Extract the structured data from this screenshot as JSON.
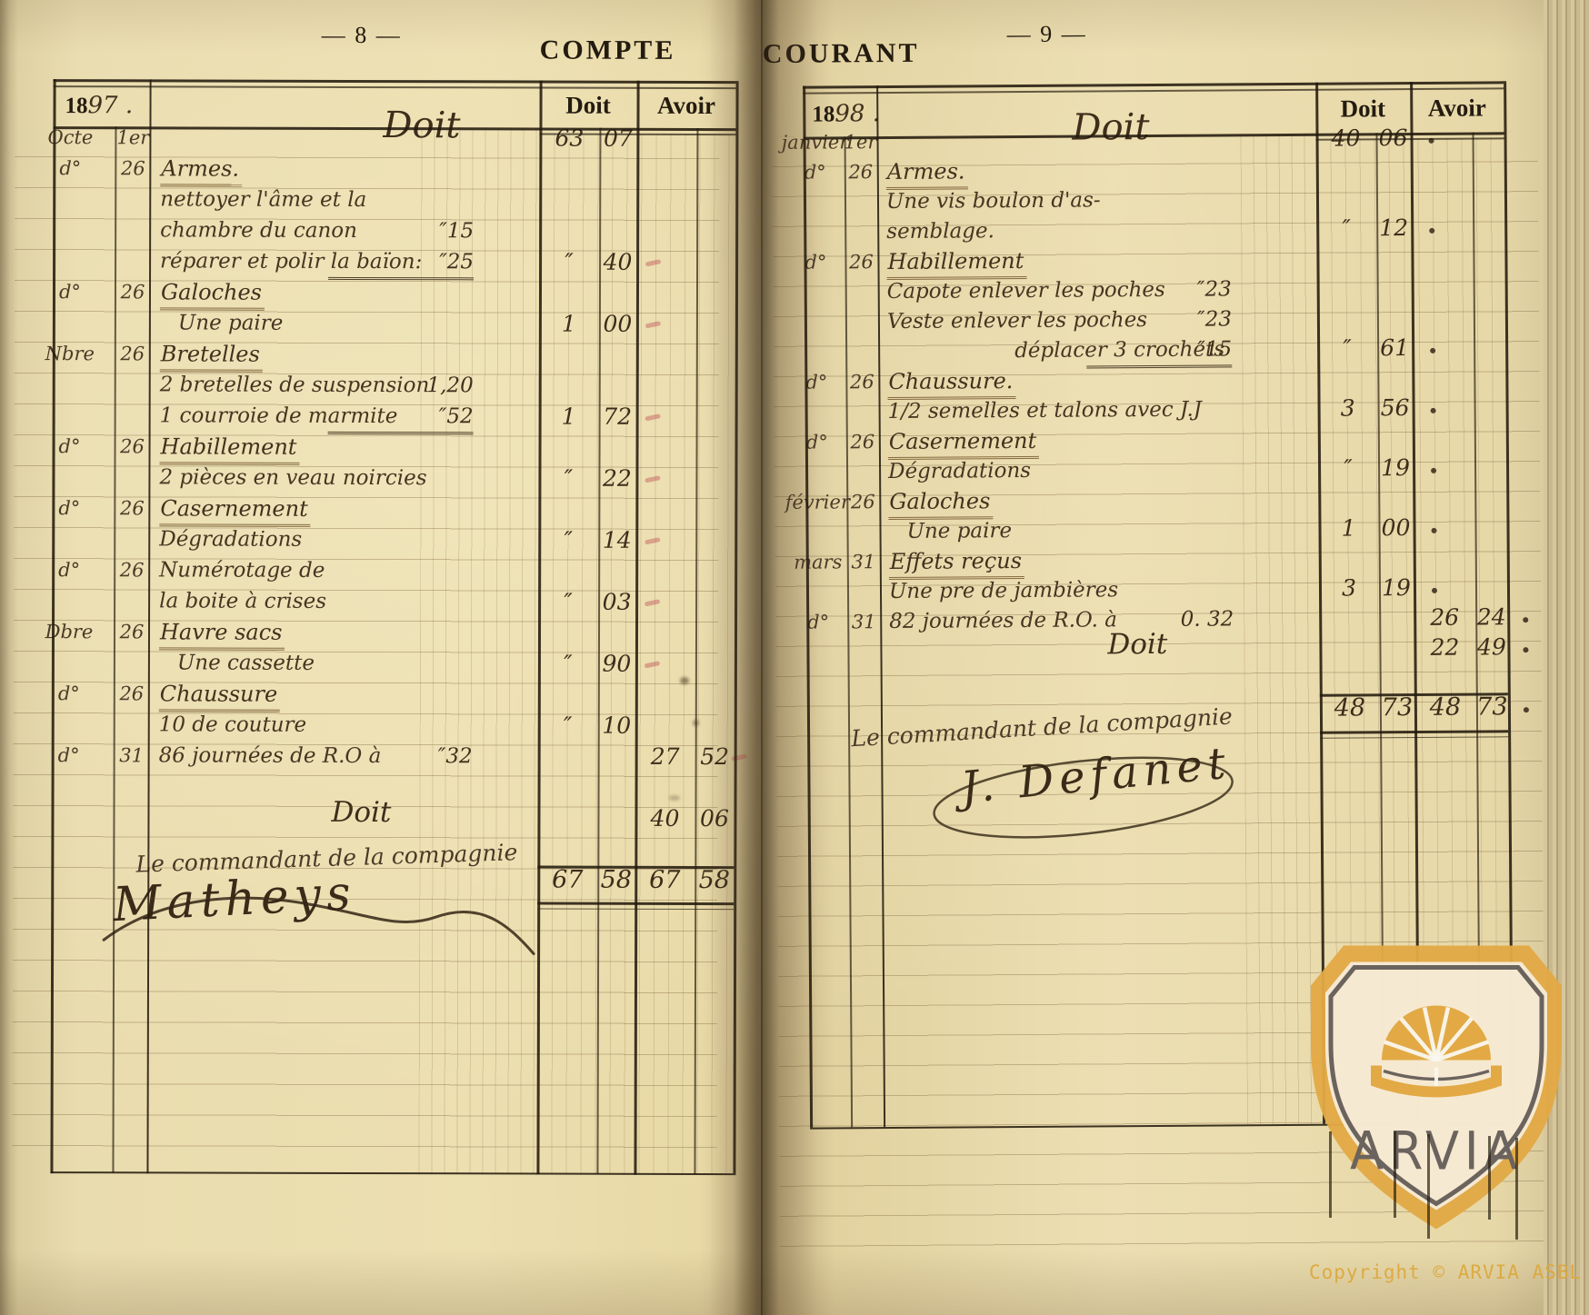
{
  "palette": {
    "paper": "#e9dcae",
    "ink": "#241b10",
    "hand": "#4b3a27",
    "gold": "#e2a945",
    "gray": "#6b635d"
  },
  "left_page": {
    "page_number": "— 8 —",
    "header_word": "COMPTE",
    "year": {
      "print": "18",
      "hand": "97",
      "dot": " ."
    },
    "columns": {
      "doit": "Doit",
      "avoir": "Avoir"
    },
    "lines": [
      {
        "m": "Octe",
        "d": "1er",
        "t": "Doit",
        "script": 1,
        "ind": 255,
        "df": "63",
        "dc": "07"
      },
      {
        "m": "d°",
        "d": "26",
        "t": "Armes.",
        "u": 1
      },
      {
        "t": "nettoyer l'âme et la"
      },
      {
        "t": "chambre du canon",
        "amt": "″15"
      },
      {
        "t": "réparer et polir la baïon:",
        "amt": "″25",
        "amt_u": 1,
        "df": "″",
        "dc": "40",
        "tick": "d"
      },
      {
        "m": "d°",
        "d": "26",
        "t": "Galoches",
        "u": 1
      },
      {
        "t": "Une paire",
        "ind": 30,
        "df": "1",
        "dc": "00",
        "tick": "d"
      },
      {
        "m": "Nbre",
        "d": "26",
        "t": "Bretelles",
        "u": 1
      },
      {
        "t": "2 bretelles de suspension",
        "amt": "1,20"
      },
      {
        "t": "1 courroie de marmite",
        "amt": "″52",
        "amt_u": 1,
        "df": "1",
        "dc": "72",
        "tick": "d"
      },
      {
        "m": "d°",
        "d": "26",
        "t": "Habillement",
        "u": 1
      },
      {
        "t": "2 pièces en veau noircies",
        "df": "″",
        "dc": "22",
        "tick": "d"
      },
      {
        "m": "d°",
        "d": "26",
        "t": "Casernement",
        "u": 1
      },
      {
        "t": "Dégradations",
        "df": "″",
        "dc": "14",
        "tick": "d"
      },
      {
        "m": "d°",
        "d": "26",
        "t": "Numérotage de"
      },
      {
        "t": "la boite à crises",
        "df": "″",
        "dc": "03",
        "tick": "d"
      },
      {
        "m": "Dbre",
        "d": "26",
        "t": "Havre sacs",
        "u": 1
      },
      {
        "t": "Une cassette",
        "ind": 30,
        "df": "″",
        "dc": "90",
        "tick": "d"
      },
      {
        "m": "d°",
        "d": "26",
        "t": "Chaussure",
        "u": 1
      },
      {
        "t": "10 de couture",
        "df": "″",
        "dc": "10"
      },
      {
        "m": "d°",
        "d": "31",
        "t": "86 journées de R.O à",
        "amt": "″32",
        "af": "27",
        "ac": "52",
        "tick": "a"
      },
      {},
      {
        "t": "Doit",
        "script": 2,
        "ind": 200,
        "af": "40",
        "ac": "06"
      },
      {}
    ],
    "totals": {
      "df": "67",
      "dc": "58",
      "af": "67",
      "ac": "58"
    },
    "signature": {
      "caption": "Le commandant de la compagnie",
      "name": "Matheys"
    }
  },
  "right_page": {
    "page_number": "— 9 —",
    "header_word": "COURANT",
    "year": {
      "print": "18",
      "hand": "98",
      "dot": " ."
    },
    "columns": {
      "doit": "Doit",
      "avoir": "Avoir"
    },
    "lines": [
      {
        "m": "janvier",
        "d": "1er",
        "t": "Doit",
        "script": 1,
        "ind": 215,
        "df": "40",
        "dc": "06",
        "dot": "d"
      },
      {
        "m": "d°",
        "d": "26",
        "t": "Armes.",
        "u": 1
      },
      {
        "t": "Une vis boulon d'as-"
      },
      {
        "t": "semblage.",
        "df": "″",
        "dc": "12",
        "dot": "d"
      },
      {
        "m": "d°",
        "d": "26",
        "t": "Habillement",
        "u": 1
      },
      {
        "t": "Capote enlever les poches",
        "amt": "″23"
      },
      {
        "t": "Veste enlever les poches",
        "amt": "″23"
      },
      {
        "t": "déplacer 3 crochets",
        "ind": 150,
        "amt": "″15",
        "amt_u": 1,
        "df": "″",
        "dc": "61",
        "dot": "d"
      },
      {
        "m": "d°",
        "d": "26",
        "t": "Chaussure.",
        "u": 1
      },
      {
        "t": "1/2 semelles et talons avec J.J",
        "df": "3",
        "dc": "56",
        "dot": "d"
      },
      {
        "m": "d°",
        "d": "26",
        "t": "Casernement",
        "u": 1
      },
      {
        "t": "Dégradations",
        "df": "″",
        "dc": "19",
        "dot": "d"
      },
      {
        "m": "février",
        "d": "26",
        "t": "Galoches",
        "u": 1
      },
      {
        "t": "Une paire",
        "ind": 30,
        "df": "1",
        "dc": "00",
        "dot": "d"
      },
      {
        "m": "mars",
        "d": "31",
        "t": "Effets reçus",
        "u": 1
      },
      {
        "t": "Une pre de jambières",
        "df": "3",
        "dc": "19",
        "dot": "d"
      },
      {
        "m": "d°",
        "d": "31",
        "t": "82 journées de R.O. à",
        "amt": "0. 32",
        "af": "26",
        "ac": "24",
        "dot": "a"
      },
      {
        "t": "Doit",
        "script": 2,
        "ind": 250,
        "af": "22",
        "ac": "49",
        "dot": "a"
      },
      {}
    ],
    "totals": {
      "df": "48",
      "dc": "73",
      "af": "48",
      "ac": "73"
    },
    "signature": {
      "caption": "Le commandant de la compagnie",
      "name": "J. Defanet"
    }
  },
  "watermark": {
    "logo_text": "ARVIA",
    "copyright": "Copyright © ARVIA ASBL"
  }
}
